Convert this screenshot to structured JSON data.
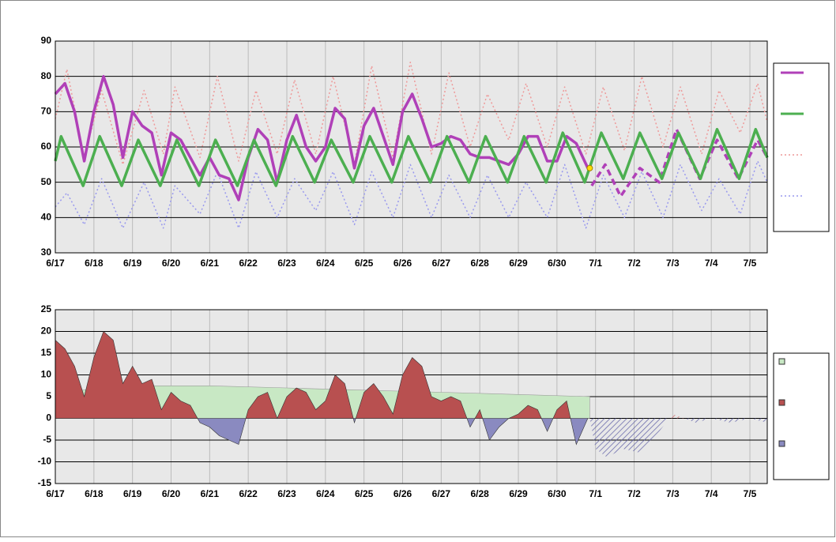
{
  "chart_data": [
    {
      "type": "line",
      "xlim": [
        0,
        18.45
      ],
      "ylim": [
        30,
        90
      ],
      "yticks": [
        30,
        40,
        50,
        60,
        70,
        80,
        90
      ],
      "xticks": [
        {
          "value": 0,
          "label": "6/17"
        },
        {
          "value": 1,
          "label": "6/18"
        },
        {
          "value": 2,
          "label": "6/19"
        },
        {
          "value": 3,
          "label": "6/20"
        },
        {
          "value": 4,
          "label": "6/21"
        },
        {
          "value": 5,
          "label": "6/22"
        },
        {
          "value": 6,
          "label": "6/23"
        },
        {
          "value": 7,
          "label": "6/24"
        },
        {
          "value": 8,
          "label": "6/25"
        },
        {
          "value": 9,
          "label": "6/26"
        },
        {
          "value": 10,
          "label": "6/27"
        },
        {
          "value": 11,
          "label": "6/28"
        },
        {
          "value": 12,
          "label": "6/29"
        },
        {
          "value": 13,
          "label": "6/30"
        },
        {
          "value": 14,
          "label": "7/1"
        },
        {
          "value": 15,
          "label": "7/2"
        },
        {
          "value": 16,
          "label": "7/3"
        },
        {
          "value": 17,
          "label": "7/4"
        },
        {
          "value": 18,
          "label": "7/5"
        }
      ],
      "grid": true,
      "legend": "right",
      "series": [
        {
          "color": "#ee9999",
          "style": "dotted",
          "legend": 2,
          "x": [
            0,
            0.3,
            0.75,
            1.2,
            1.75,
            2.3,
            2.8,
            3.1,
            3.75,
            4.2,
            4.75,
            5.2,
            5.75,
            6.2,
            6.75,
            7.2,
            7.75,
            8.2,
            8.75,
            9.2,
            9.75,
            10.2,
            10.75,
            11.2,
            11.75,
            12.2,
            12.75,
            13.2,
            13.75,
            14.2,
            14.75,
            15.2,
            15.75,
            16.2,
            16.75,
            17.2,
            17.75,
            18.2,
            18.45
          ],
          "values": [
            68,
            82,
            57,
            76,
            55,
            76,
            58,
            77,
            57,
            80,
            56,
            76,
            58,
            79,
            58,
            80,
            55,
            83,
            57,
            84,
            58,
            81,
            60,
            75,
            62,
            78,
            60,
            77,
            58,
            77,
            59,
            80,
            60,
            77,
            58,
            76,
            64,
            78,
            67
          ]
        },
        {
          "color": "#9999ee",
          "style": "dotted",
          "legend": 3,
          "x": [
            0,
            0.3,
            0.75,
            1.2,
            1.75,
            2.3,
            2.8,
            3.1,
            3.75,
            4.2,
            4.75,
            5.2,
            5.75,
            6.2,
            6.75,
            7.2,
            7.75,
            8.2,
            8.75,
            9.2,
            9.75,
            10.2,
            10.75,
            11.2,
            11.75,
            12.2,
            12.75,
            13.2,
            13.75,
            14.2,
            14.75,
            15.2,
            15.75,
            16.2,
            16.75,
            17.2,
            17.75,
            18.2,
            18.45
          ],
          "values": [
            43,
            47,
            38,
            51,
            37,
            50,
            37,
            49,
            41,
            53,
            37,
            53,
            40,
            51,
            42,
            53,
            38,
            53,
            40,
            55,
            40,
            52,
            40,
            52,
            40,
            50,
            40,
            55,
            37,
            52,
            40,
            53,
            40,
            55,
            42,
            51,
            41,
            56,
            50
          ]
        },
        {
          "color": "#b040b8",
          "style": "solid",
          "legend": 0,
          "x": [
            0,
            0.25,
            0.5,
            0.75,
            1,
            1.25,
            1.5,
            1.75,
            2,
            2.25,
            2.5,
            2.75,
            3,
            3.25,
            3.5,
            3.75,
            4,
            4.25,
            4.5,
            4.75,
            5,
            5.25,
            5.5,
            5.75,
            6,
            6.25,
            6.5,
            6.75,
            7,
            7.25,
            7.5,
            7.75,
            8,
            8.25,
            8.5,
            8.75,
            9,
            9.25,
            9.5,
            9.75,
            10,
            10.25,
            10.5,
            10.75,
            11,
            11.25,
            11.5,
            11.75,
            12,
            12.25,
            12.5,
            12.75,
            13,
            13.25,
            13.5,
            13.8
          ],
          "values": [
            75,
            78,
            70,
            56,
            70,
            80,
            72,
            57,
            70,
            66,
            64,
            52,
            64,
            62,
            57,
            52,
            57,
            52,
            51,
            45,
            57,
            65,
            62,
            50,
            62,
            69,
            60,
            56,
            60,
            71,
            68,
            54,
            66,
            71,
            63,
            55,
            70,
            75,
            68,
            60,
            61,
            63,
            62,
            58,
            57,
            57,
            56,
            55,
            58,
            63,
            63,
            56,
            56,
            63,
            61,
            54
          ]
        },
        {
          "color": "#b040b8",
          "style": "dashed",
          "x": [
            13.9,
            14.25,
            14.65,
            15.15,
            15.65,
            16.1,
            16.7,
            17.15,
            17.7,
            18.2,
            18.45
          ],
          "values": [
            49,
            55,
            46,
            54,
            50,
            65,
            51,
            62,
            51,
            62,
            57
          ]
        },
        {
          "color": "#4caf50",
          "style": "solid",
          "legend": 1,
          "x": [
            0,
            0.15,
            0.72,
            1.15,
            1.72,
            2.15,
            2.72,
            3.15,
            3.72,
            4.15,
            4.72,
            5.15,
            5.72,
            6.15,
            6.72,
            7.15,
            7.72,
            8.15,
            8.72,
            9.15,
            9.72,
            10.15,
            10.72,
            11.15,
            11.72,
            12.15,
            12.72,
            13.15,
            13.72,
            14.15,
            14.72,
            15.15,
            15.72,
            16.15,
            16.72,
            17.15,
            17.72,
            18.15,
            18.45
          ],
          "values": [
            56,
            63,
            49,
            63,
            49,
            62,
            49,
            62,
            49,
            62,
            49,
            62,
            49,
            63,
            50,
            62,
            50,
            63,
            50,
            63,
            50,
            63,
            50,
            63,
            50,
            63,
            50,
            64,
            50,
            64,
            51,
            64,
            51,
            64,
            51,
            65,
            51,
            65,
            57
          ]
        }
      ],
      "current": {
        "x": 13.85,
        "y": 54,
        "color": "#ffdd00"
      }
    },
    {
      "type": "area",
      "xlim": [
        0,
        18.45
      ],
      "ylim": [
        -15,
        25
      ],
      "yticks": [
        -15,
        -10,
        -5,
        0,
        5,
        10,
        15,
        20,
        25
      ],
      "xticks": [
        {
          "value": 0,
          "label": "6/17"
        },
        {
          "value": 1,
          "label": "6/18"
        },
        {
          "value": 2,
          "label": "6/19"
        },
        {
          "value": 3,
          "label": "6/20"
        },
        {
          "value": 4,
          "label": "6/21"
        },
        {
          "value": 5,
          "label": "6/22"
        },
        {
          "value": 6,
          "label": "6/23"
        },
        {
          "value": 7,
          "label": "6/24"
        },
        {
          "value": 8,
          "label": "6/25"
        },
        {
          "value": 9,
          "label": "6/26"
        },
        {
          "value": 10,
          "label": "6/27"
        },
        {
          "value": 11,
          "label": "6/28"
        },
        {
          "value": 12,
          "label": "6/29"
        },
        {
          "value": 13,
          "label": "6/30"
        },
        {
          "value": 14,
          "label": "7/1"
        },
        {
          "value": 15,
          "label": "7/2"
        },
        {
          "value": 16,
          "label": "7/3"
        },
        {
          "value": 17,
          "label": "7/4"
        },
        {
          "value": 18,
          "label": "7/5"
        }
      ],
      "grid": true,
      "legend": "right",
      "series": [
        {
          "color": "#c8e8c4",
          "x": [
            0,
            2,
            4,
            6,
            8,
            10,
            12,
            13.85
          ],
          "values": [
            6,
            7.5,
            7.5,
            7,
            6.5,
            6,
            5.5,
            5
          ]
        },
        {
          "color": "#b85050",
          "negative_color": "#8a8ac0",
          "x": [
            0,
            0.25,
            0.5,
            0.75,
            1,
            1.25,
            1.5,
            1.75,
            2,
            2.25,
            2.5,
            2.75,
            3,
            3.25,
            3.5,
            3.75,
            4,
            4.25,
            4.5,
            4.75,
            5,
            5.25,
            5.5,
            5.75,
            6,
            6.25,
            6.5,
            6.75,
            7,
            7.25,
            7.5,
            7.75,
            8,
            8.25,
            8.5,
            8.75,
            9,
            9.25,
            9.5,
            9.75,
            10,
            10.25,
            10.5,
            10.75,
            11,
            11.25,
            11.5,
            11.75,
            12,
            12.25,
            12.5,
            12.75,
            13,
            13.25,
            13.5,
            13.8
          ],
          "values": [
            18,
            16,
            12,
            5,
            14,
            20,
            18,
            8,
            12,
            8,
            9,
            2,
            6,
            4,
            3,
            -1,
            -2,
            -4,
            -5,
            -6,
            2,
            5,
            6,
            0,
            5,
            7,
            6,
            2,
            4,
            10,
            8,
            -1,
            6,
            8,
            5,
            1,
            10,
            14,
            12,
            5,
            4,
            5,
            4,
            -2,
            2,
            -5,
            -2,
            0,
            1,
            3,
            2,
            -3,
            2,
            4,
            -6,
            0
          ]
        },
        {
          "color": "#d07070",
          "negative_color": "#6666aa",
          "hatch": true,
          "x": [
            13.85,
            14,
            14.3,
            14.7,
            15.2,
            15.65,
            16,
            16.3,
            16.6,
            17,
            17.5,
            18,
            18.45
          ],
          "values": [
            0,
            -7,
            -9,
            -7,
            -8,
            -3,
            1,
            0,
            -1,
            0,
            -1,
            0,
            -1
          ]
        }
      ]
    }
  ]
}
